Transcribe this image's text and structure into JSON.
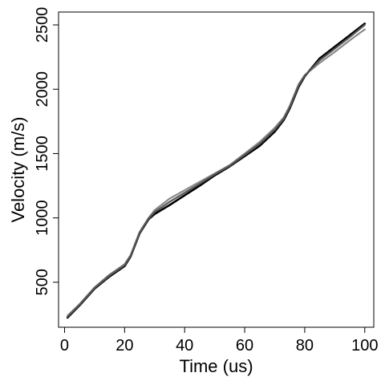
{
  "chart_data": {
    "type": "line",
    "xlabel": "Time (us)",
    "ylabel": "Velocity (m/s)",
    "xlim": [
      -2,
      103
    ],
    "ylim": [
      150,
      2600
    ],
    "xticks": [
      0,
      20,
      40,
      60,
      80,
      100
    ],
    "yticks": [
      500,
      1000,
      1500,
      2000,
      2500
    ],
    "xtick_labels": [
      "0",
      "20",
      "40",
      "60",
      "80",
      "100"
    ],
    "ytick_labels": [
      "500",
      "1000",
      "1500",
      "2000",
      "2500"
    ],
    "grid": false,
    "series": [
      {
        "color": "#000000",
        "x": [
          1,
          5,
          10,
          15,
          20,
          22,
          25,
          28,
          30,
          35,
          40,
          45,
          50,
          55,
          60,
          65,
          70,
          73,
          75,
          78,
          80,
          85,
          90,
          95,
          100
        ],
        "values": [
          225,
          320,
          450,
          545,
          625,
          700,
          880,
          990,
          1030,
          1100,
          1175,
          1250,
          1330,
          1400,
          1480,
          1560,
          1670,
          1760,
          1850,
          2020,
          2100,
          2240,
          2330,
          2420,
          2510
        ]
      },
      {
        "color": "#888888",
        "x": [
          1,
          5,
          10,
          15,
          20,
          22,
          25,
          28,
          30,
          35,
          40,
          45,
          50,
          55,
          60,
          65,
          70,
          73,
          75,
          78,
          80,
          85,
          90,
          95,
          100
        ],
        "values": [
          240,
          330,
          460,
          560,
          640,
          710,
          890,
          1000,
          1060,
          1150,
          1215,
          1280,
          1345,
          1410,
          1500,
          1590,
          1700,
          1780,
          1870,
          2040,
          2110,
          2205,
          2290,
          2380,
          2465
        ]
      },
      {
        "color": "#555555",
        "x": [
          1,
          5,
          10,
          15,
          20,
          22,
          25,
          28,
          30,
          35,
          40,
          45,
          50,
          55,
          60,
          65,
          70,
          73,
          75,
          78,
          80,
          85,
          90,
          95,
          100
        ],
        "values": [
          232,
          325,
          455,
          552,
          632,
          705,
          885,
          995,
          1045,
          1125,
          1195,
          1265,
          1338,
          1405,
          1490,
          1575,
          1685,
          1770,
          1860,
          2030,
          2105,
          2225,
          2315,
          2405,
          2500
        ]
      }
    ]
  }
}
